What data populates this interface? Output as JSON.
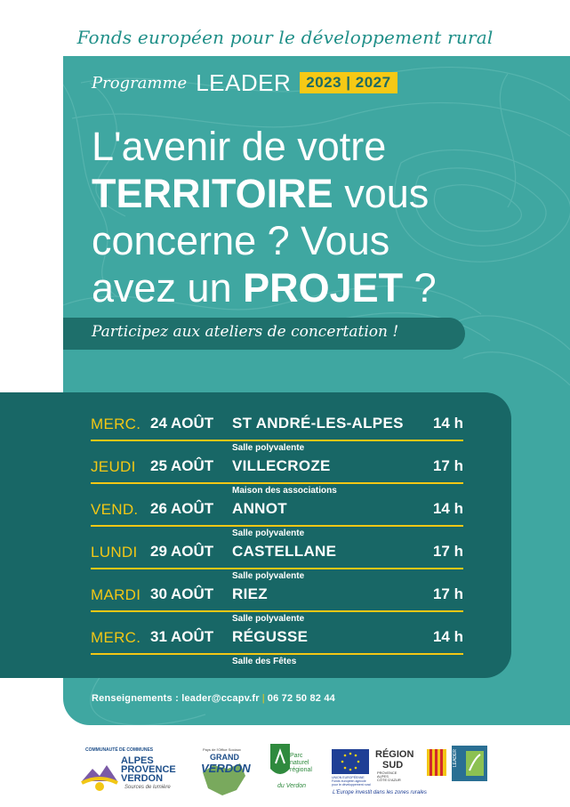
{
  "header": {
    "fund_title": "Fonds européen pour le développement rural",
    "programme": "Programme",
    "leader": "LEADER",
    "years": "2023 | 2027"
  },
  "headline": {
    "l1": "L'avenir de votre",
    "l2_bold": "TERRITOIRE",
    "l2_rest": " vous",
    "l3": "concerne ? Vous",
    "l4_pre": "avez un ",
    "l4_bold": "PROJET",
    "l4_post": " ?"
  },
  "banner": "Participez aux ateliers de concertation !",
  "schedule": [
    {
      "day": "MERC.",
      "date": "24 AOÛT",
      "town": "ST ANDRÉ-LES-ALPES",
      "hour": "14 h",
      "venue": "Salle polyvalente"
    },
    {
      "day": "JEUDI",
      "date": "25 AOÛT",
      "town": "VILLECROZE",
      "hour": "17 h",
      "venue": "Maison des associations"
    },
    {
      "day": "VEND.",
      "date": "26 AOÛT",
      "town": "ANNOT",
      "hour": "14 h",
      "venue": "Salle polyvalente"
    },
    {
      "day": "LUNDI",
      "date": "29 AOÛT",
      "town": "CASTELLANE",
      "hour": "17 h",
      "venue": "Salle polyvalente"
    },
    {
      "day": "MARDI",
      "date": "30 AOÛT",
      "town": "RIEZ",
      "hour": "17 h",
      "venue": "Salle polyvalente"
    },
    {
      "day": "MERC.",
      "date": "31 AOÛT",
      "town": "RÉGUSSE",
      "hour": "14 h",
      "venue": "Salle des Fêtes"
    }
  ],
  "contact": {
    "label": "Renseignements : leader@ccapv.fr",
    "sep": "|",
    "phone": "06 72 50 82 44"
  },
  "logos": {
    "ccapv": {
      "top": "COMMUNAUTÉ DE COMMUNES",
      "l1": "ALPES",
      "l2": "PROVENCE",
      "l3": "VERDON",
      "sub": "Sources de lumière"
    },
    "grand_verdon": {
      "small": "Pays de l'Office Sociaux",
      "l1": "GRAND",
      "l2": "VERDON"
    },
    "parc": {
      "l1": "Parc",
      "l2": "naturel",
      "l3": "régional",
      "l4": "du Verdon"
    },
    "eu": {
      "l1": "UNION EUROPÉENNE",
      "l2": "Fonds européen agricole",
      "l3": "pour le développement rural"
    },
    "region": {
      "l1": "RÉGION",
      "l2": "SUD",
      "l3": "PROVENCE",
      "l4": "ALPES",
      "l5": "CÔTE D'AZUR"
    },
    "leader_logo": "LEADER",
    "tagline": "L'Europe investit dans les zones rurales"
  },
  "colors": {
    "teal": "#3fa7a1",
    "dark_teal": "#186766",
    "yellow": "#f2c715"
  }
}
